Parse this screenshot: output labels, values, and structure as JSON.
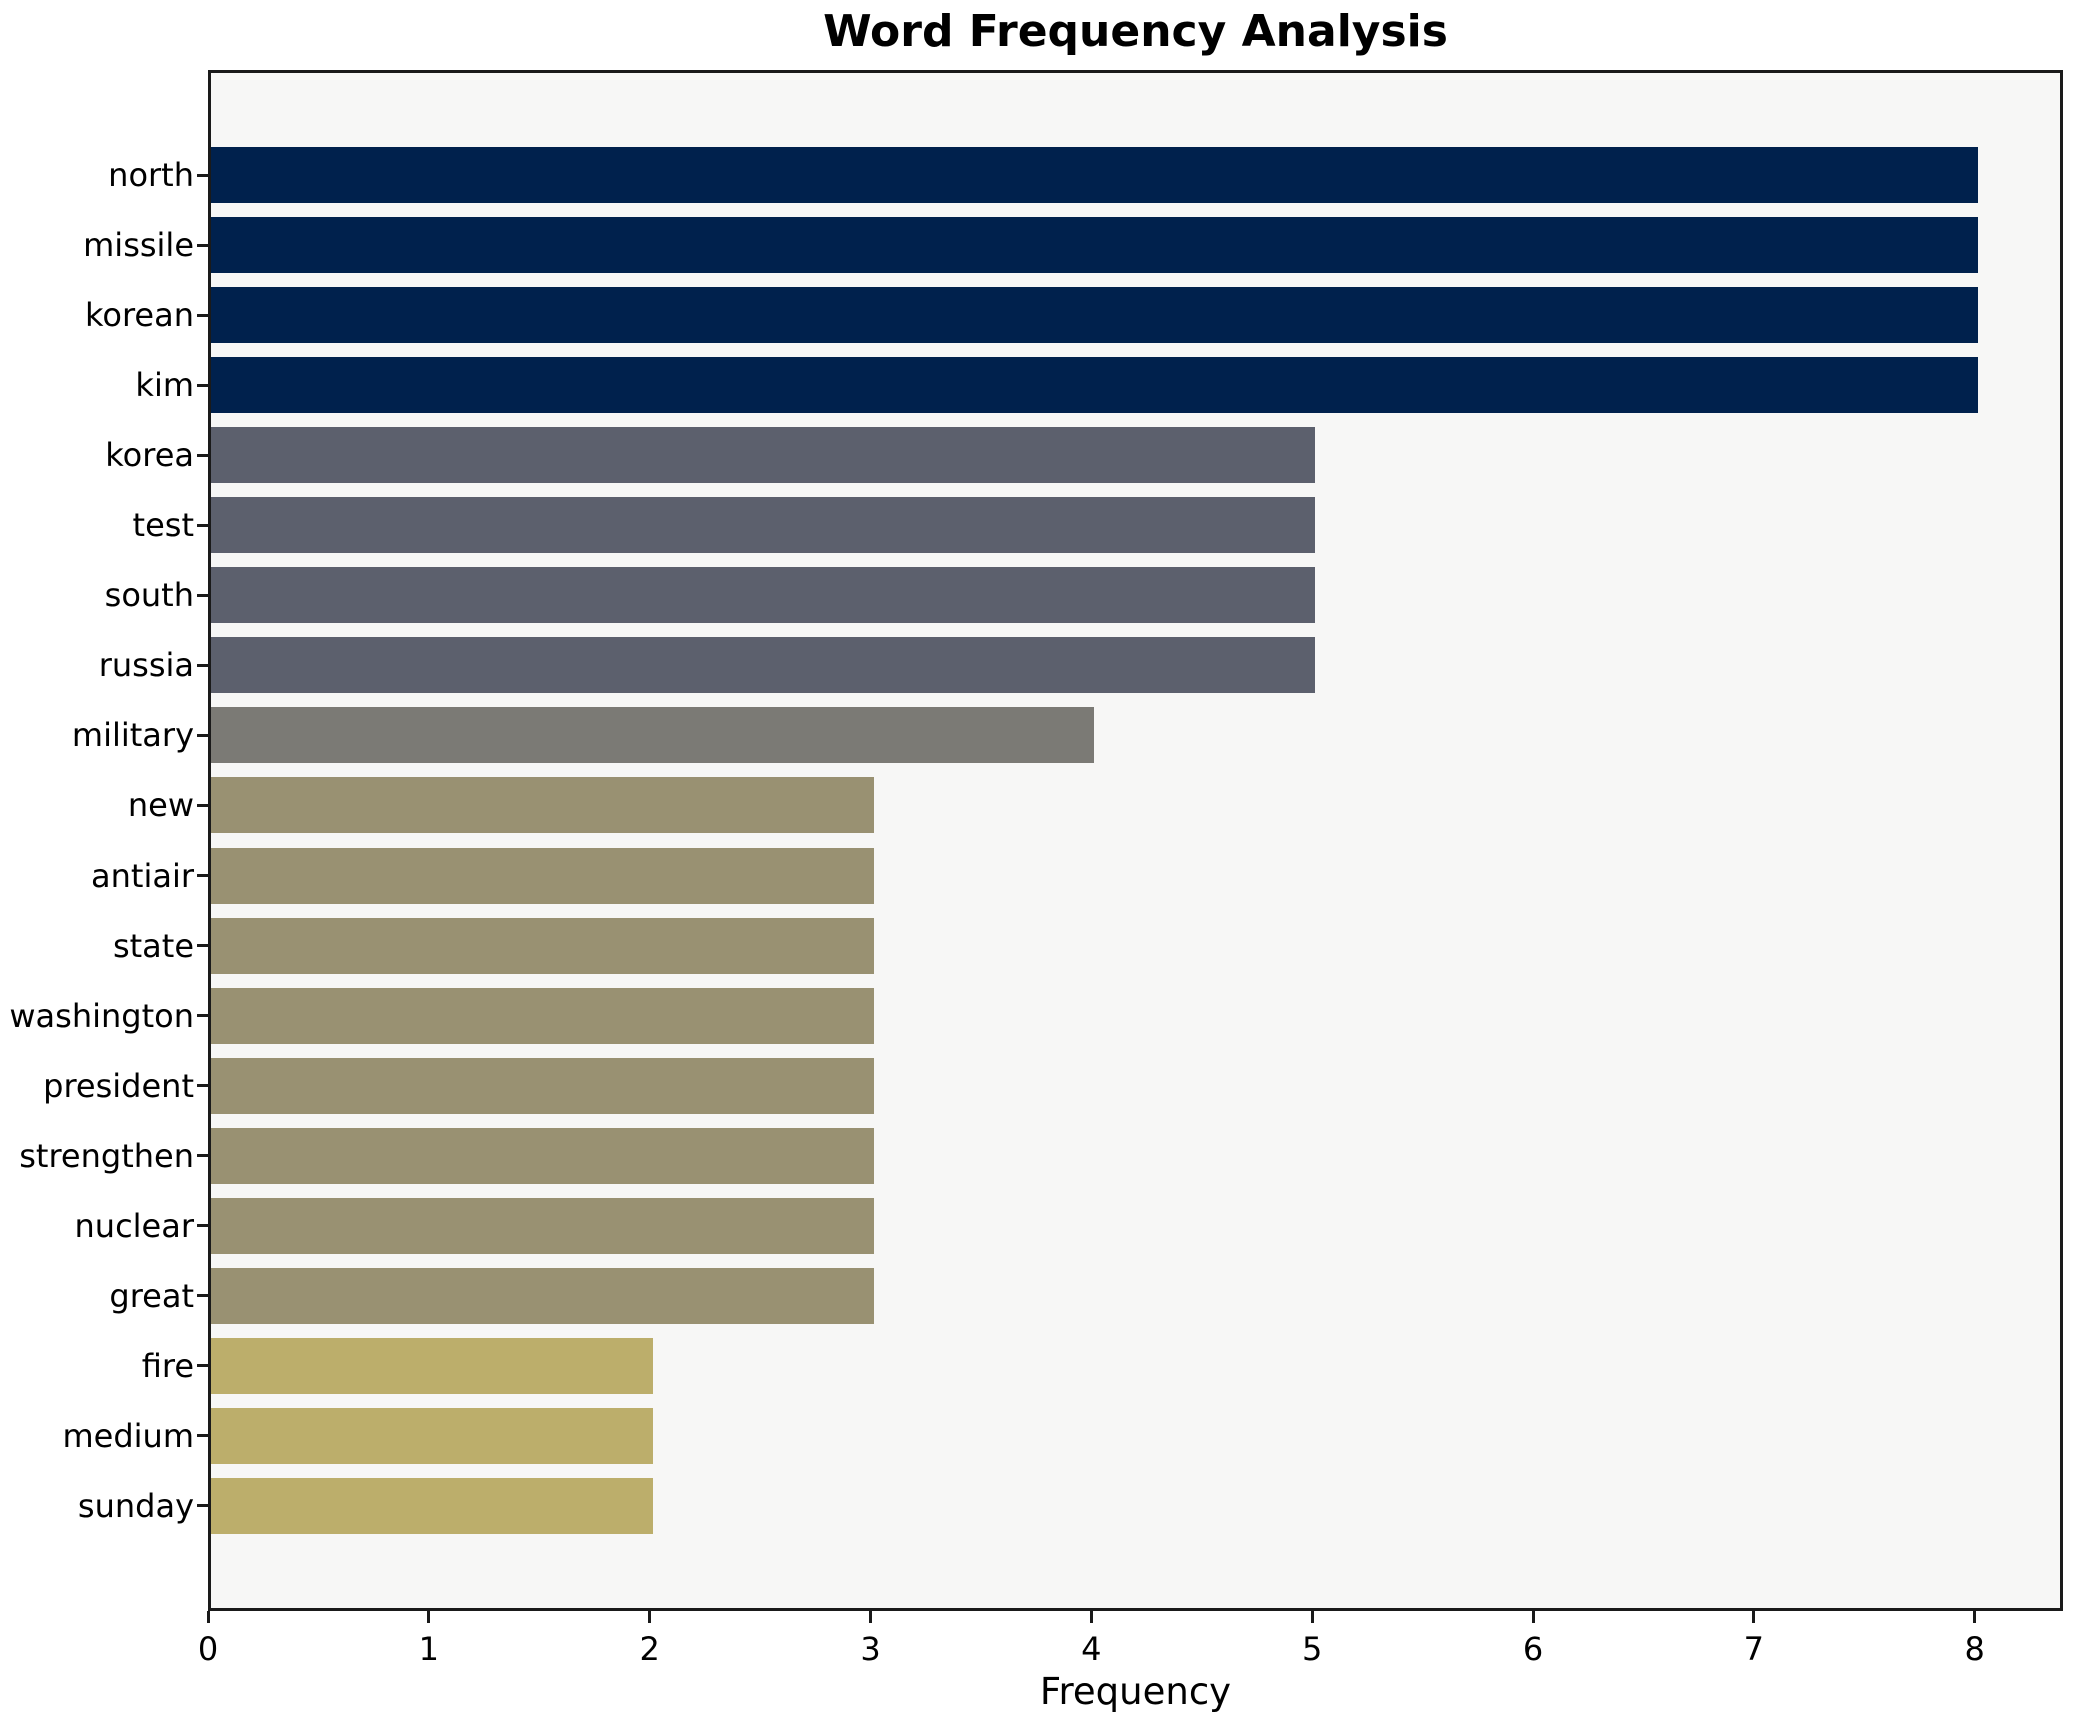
{
  "chart_data": {
    "type": "bar",
    "orientation": "horizontal",
    "title": "Word Frequency Analysis",
    "xlabel": "Frequency",
    "ylabel": "",
    "categories": [
      "north",
      "missile",
      "korean",
      "kim",
      "korea",
      "test",
      "south",
      "russia",
      "military",
      "new",
      "antiair",
      "state",
      "washington",
      "president",
      "strengthen",
      "nuclear",
      "great",
      "fire",
      "medium",
      "sunday"
    ],
    "values": [
      8,
      8,
      8,
      8,
      5,
      5,
      5,
      5,
      4,
      3,
      3,
      3,
      3,
      3,
      3,
      3,
      3,
      2,
      2,
      2
    ],
    "xlim": [
      0,
      8.4
    ],
    "xticks": [
      "0",
      "1",
      "2",
      "3",
      "4",
      "5",
      "6",
      "7",
      "8"
    ],
    "grid": false,
    "legend": false,
    "bar_height_fraction": 0.8,
    "colors": {
      "figure_background": "#ffffff",
      "plot_background": "#f7f7f6",
      "spine": "#1a1a1a",
      "color_by_value": {
        "8": "#00214d",
        "5": "#5c606d",
        "4": "#7b7a75",
        "3": "#999172",
        "2": "#bcae6b"
      }
    }
  }
}
